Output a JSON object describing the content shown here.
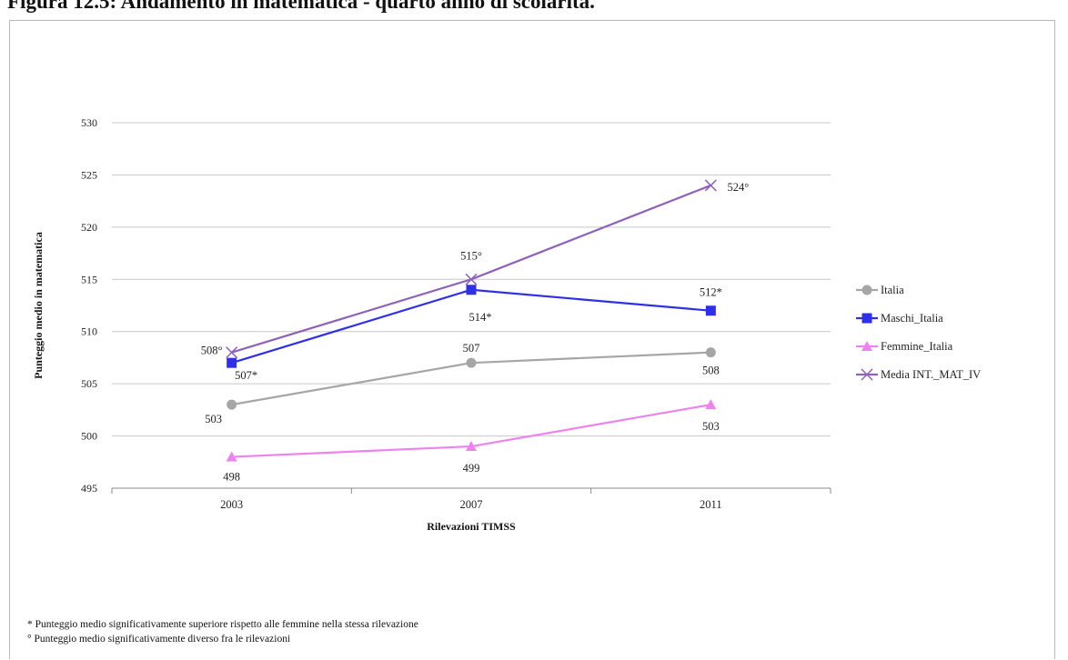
{
  "figure": {
    "title": "Figura 12.5: Andamento in matematica - quarto anno di scolarità."
  },
  "footnotes": {
    "note1": "* Punteggio medio significativamente superiore rispetto alle femmine nella stessa rilevazione",
    "note2": "° Punteggio medio significativamente diverso fra le rilevazioni"
  },
  "chart_data": {
    "type": "line",
    "xlabel": "Rilevazioni TIMSS",
    "ylabel": "Punteggio medio in matematica",
    "categories": [
      "2003",
      "2007",
      "2011"
    ],
    "ylim": [
      495,
      530
    ],
    "yticks": [
      495,
      500,
      505,
      510,
      515,
      520,
      525,
      530
    ],
    "grid": "horizontal",
    "legend_position": "right",
    "series": [
      {
        "name": "Italia",
        "values": [
          503,
          507,
          508
        ],
        "color": "#a6a6a6",
        "marker": "circle",
        "labels": [
          "503",
          "507",
          "508"
        ]
      },
      {
        "name": "Maschi_Italia",
        "values": [
          507,
          514,
          512
        ],
        "color": "#2f2fe6",
        "marker": "square",
        "labels": [
          "507*",
          "514*",
          "512*"
        ]
      },
      {
        "name": "Femmine_Italia",
        "values": [
          498,
          499,
          503
        ],
        "color": "#ee82ee",
        "marker": "triangle",
        "labels": [
          "498",
          "499",
          "503"
        ]
      },
      {
        "name": "Media INT._MAT_IV",
        "values": [
          508,
          515,
          524
        ],
        "color": "#8e62b8",
        "marker": "x",
        "labels": [
          "508°",
          "515°",
          "524°"
        ]
      }
    ]
  }
}
